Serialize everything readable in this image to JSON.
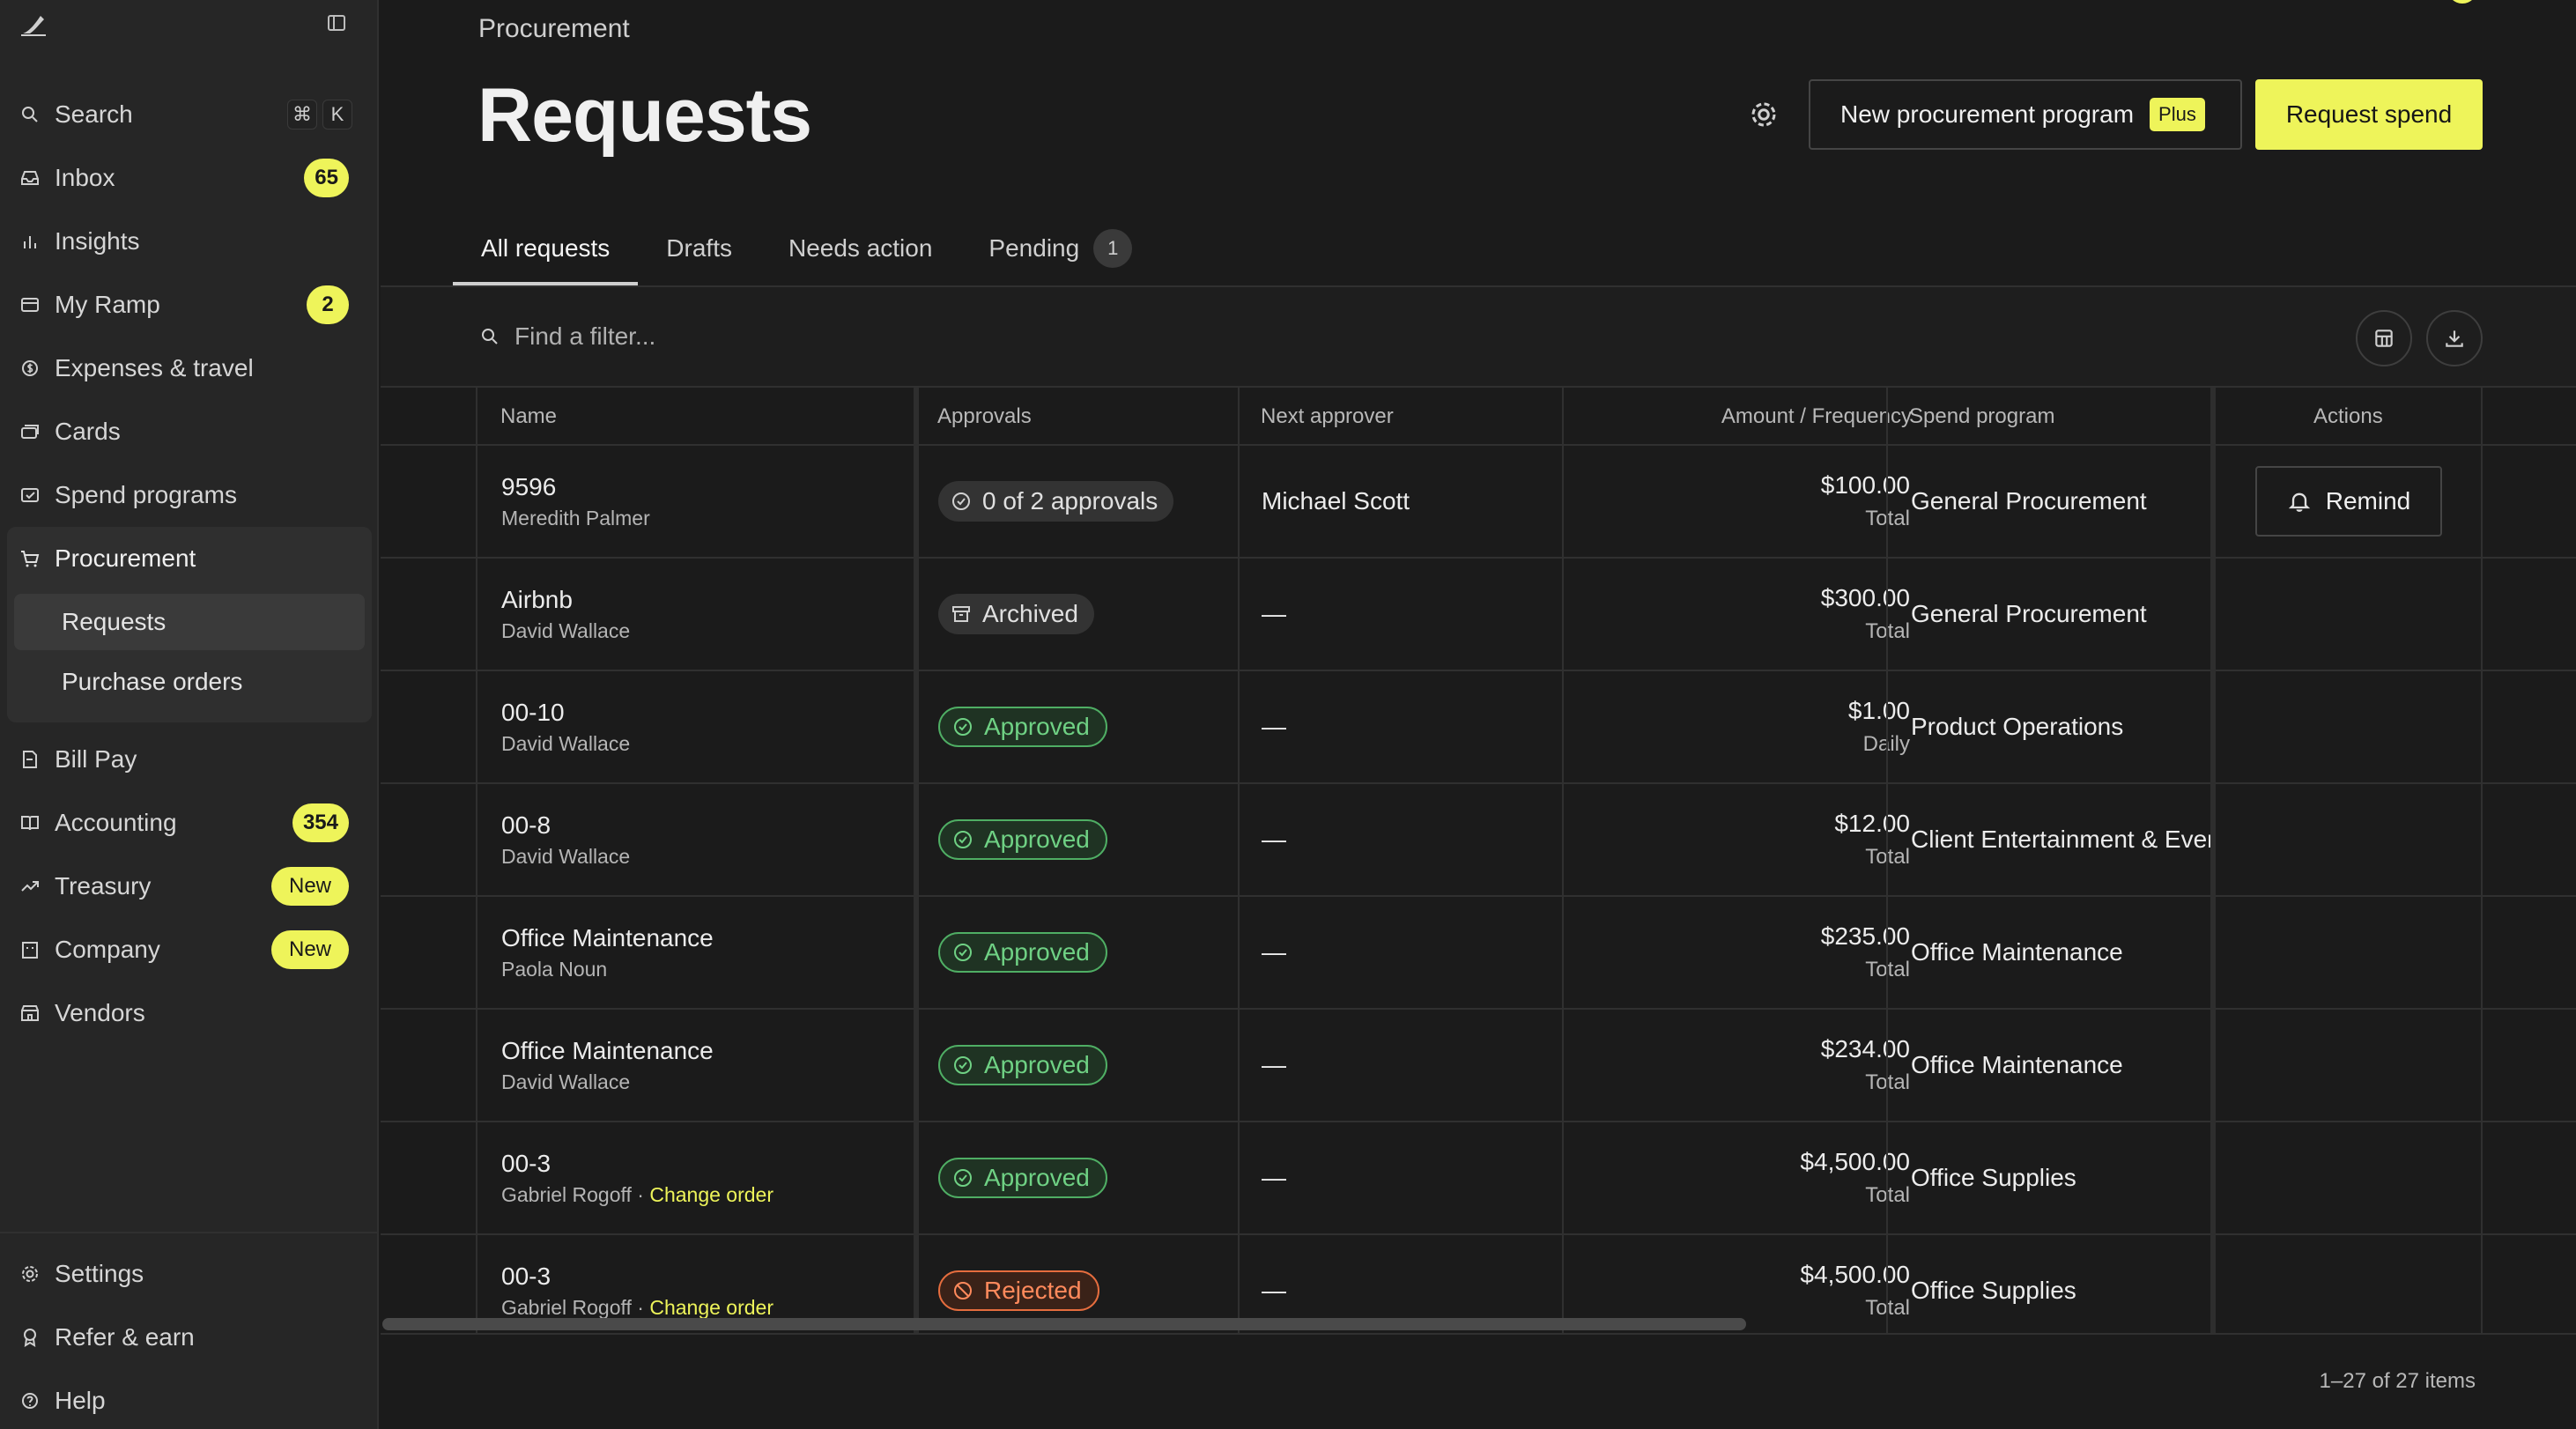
{
  "sidebar": {
    "search_label": "Search",
    "shortcut_1": "⌘",
    "shortcut_2": "K",
    "items": [
      {
        "label": "Inbox",
        "badge": "65"
      },
      {
        "label": "Insights"
      },
      {
        "label": "My Ramp",
        "badge": "2"
      },
      {
        "label": "Expenses & travel"
      },
      {
        "label": "Cards"
      },
      {
        "label": "Spend programs"
      }
    ],
    "procurement": {
      "label": "Procurement",
      "sub_items": [
        {
          "label": "Requests"
        },
        {
          "label": "Purchase orders"
        }
      ]
    },
    "items_after": [
      {
        "label": "Bill Pay"
      },
      {
        "label": "Accounting",
        "badge": "354"
      },
      {
        "label": "Treasury",
        "badge": "New"
      },
      {
        "label": "Company",
        "badge": "New"
      },
      {
        "label": "Vendors"
      }
    ],
    "bottom": [
      {
        "label": "Settings"
      },
      {
        "label": "Refer & earn"
      },
      {
        "label": "Help"
      }
    ]
  },
  "header": {
    "breadcrumb": "Procurement",
    "title": "Requests",
    "new_program_label": "New procurement program",
    "plus_tag": "Plus",
    "request_spend_label": "Request spend"
  },
  "tabs": [
    {
      "label": "All requests"
    },
    {
      "label": "Drafts"
    },
    {
      "label": "Needs action"
    },
    {
      "label": "Pending",
      "count": "1"
    }
  ],
  "filter": {
    "placeholder": "Find a filter..."
  },
  "table": {
    "columns": {
      "name": "Name",
      "approvals": "Approvals",
      "next_approver": "Next approver",
      "amount": "Amount / Frequency",
      "program": "Spend program",
      "actions": "Actions"
    },
    "rows": [
      {
        "name": "9596",
        "requester": "Meredith Palmer",
        "change_order": "",
        "status": "0 of 2 approvals",
        "status_type": "pending",
        "approver": "Michael Scott",
        "amount": "$100.00",
        "frequency": "Total",
        "program": "General Procurement",
        "action": "Remind"
      },
      {
        "name": "Airbnb",
        "requester": "David Wallace",
        "change_order": "",
        "status": "Archived",
        "status_type": "archived",
        "approver": "—",
        "amount": "$300.00",
        "frequency": "Total",
        "program": "General Procurement",
        "action": ""
      },
      {
        "name": "00-10",
        "requester": "David Wallace",
        "change_order": "",
        "status": "Approved",
        "status_type": "approved",
        "approver": "—",
        "amount": "$1.00",
        "frequency": "Daily",
        "program": "Product Operations",
        "action": ""
      },
      {
        "name": "00-8",
        "requester": "David Wallace",
        "change_order": "",
        "status": "Approved",
        "status_type": "approved",
        "approver": "—",
        "amount": "$12.00",
        "frequency": "Total",
        "program": "Client Entertainment & Ever",
        "action": ""
      },
      {
        "name": "Office Maintenance",
        "requester": "Paola Noun",
        "change_order": "",
        "status": "Approved",
        "status_type": "approved",
        "approver": "—",
        "amount": "$235.00",
        "frequency": "Total",
        "program": "Office Maintenance",
        "action": ""
      },
      {
        "name": "Office Maintenance",
        "requester": "David Wallace",
        "change_order": "",
        "status": "Approved",
        "status_type": "approved",
        "approver": "—",
        "amount": "$234.00",
        "frequency": "Total",
        "program": "Office Maintenance",
        "action": ""
      },
      {
        "name": "00-3",
        "requester": "Gabriel Rogoff · ",
        "change_order": "Change order",
        "status": "Approved",
        "status_type": "approved",
        "approver": "—",
        "amount": "$4,500.00",
        "frequency": "Total",
        "program": "Office Supplies",
        "action": ""
      },
      {
        "name": "00-3",
        "requester": "Gabriel Rogoff · ",
        "change_order": "Change order",
        "status": "Rejected",
        "status_type": "rejected",
        "approver": "—",
        "amount": "$4,500.00",
        "frequency": "Total",
        "program": "Office Supplies",
        "action": ""
      }
    ]
  },
  "pagination": "1–27 of 27 items",
  "colors": {
    "accent": "#eef45a",
    "approved": "#6fd184",
    "rejected": "#ff8a5c",
    "background": "#1b1b1b",
    "sidebar": "#262626"
  }
}
